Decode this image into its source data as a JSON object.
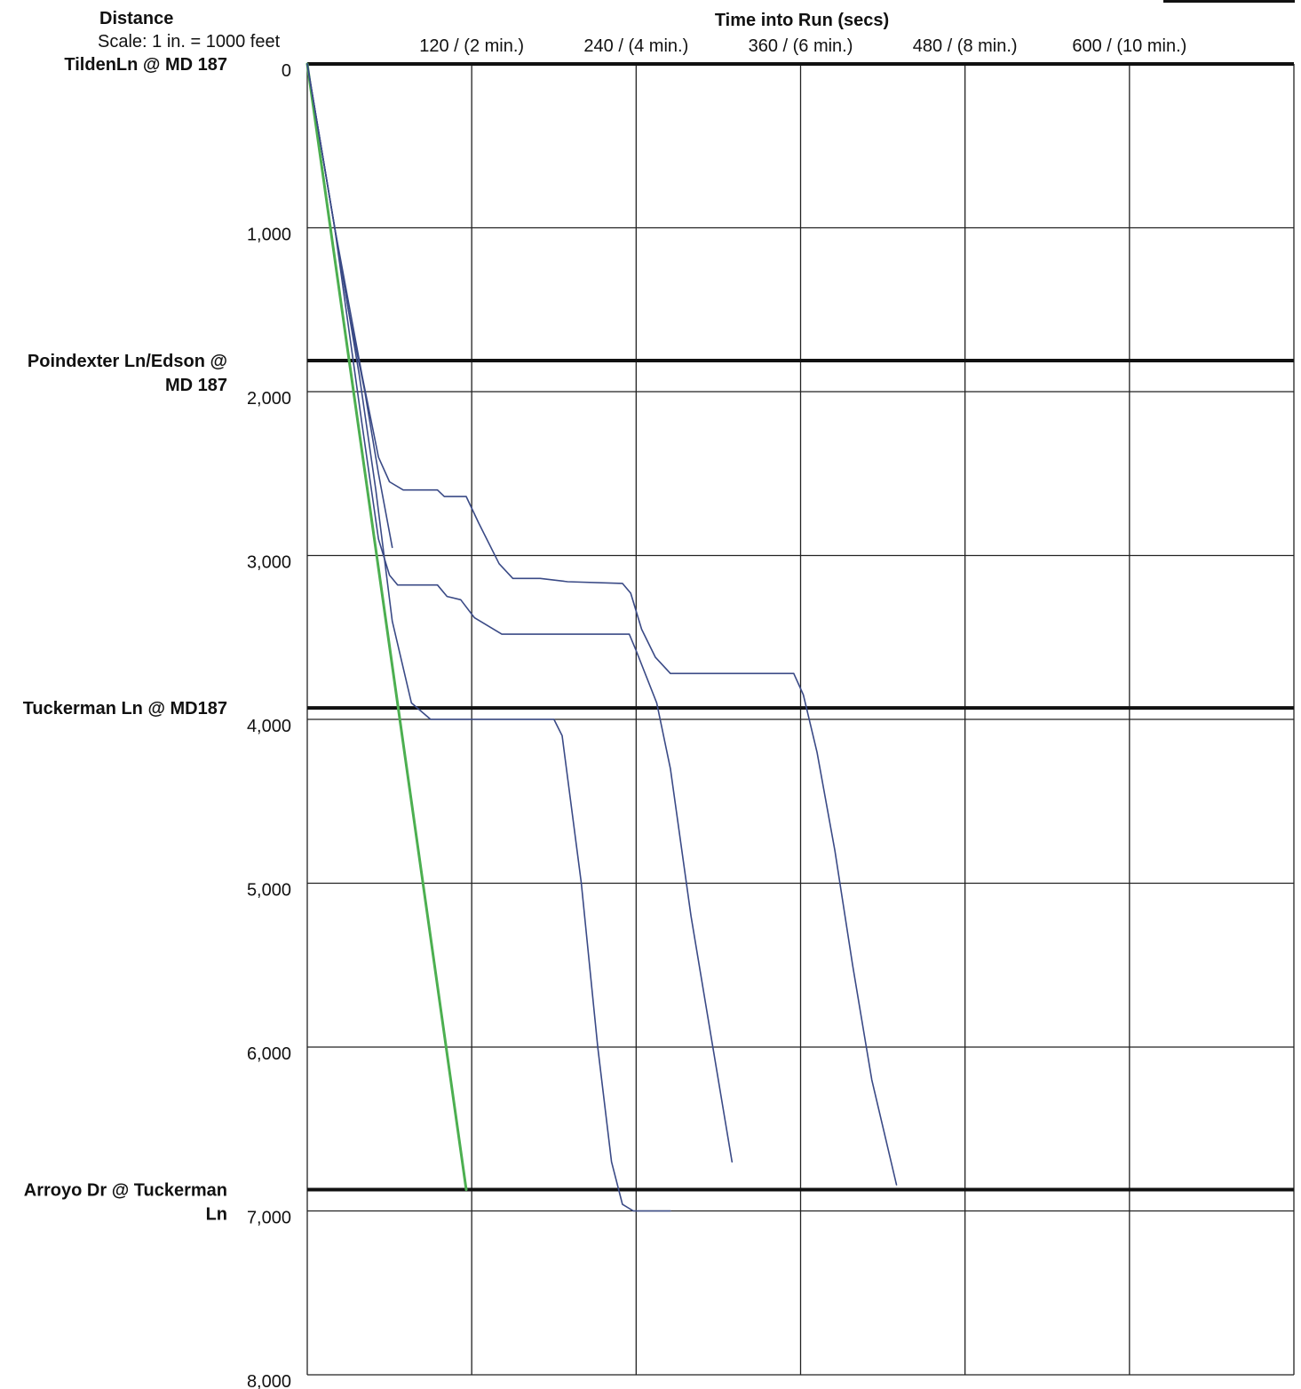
{
  "header": {
    "distance_label": "Distance",
    "scale_label": "Scale: 1 in. = 1000 feet",
    "x_title": "Time into Run (secs)"
  },
  "chart_data": {
    "type": "line",
    "title": "",
    "xlabel": "Time into Run (secs)",
    "ylabel": "Distance",
    "xlim": [
      0,
      720
    ],
    "ylim": [
      0,
      8000
    ],
    "y_inverted": true,
    "grid": true,
    "x_ticks": [
      {
        "value": 120,
        "label": "120 / (2 min.)"
      },
      {
        "value": 240,
        "label": "240 / (4 min.)"
      },
      {
        "value": 360,
        "label": "360 / (6 min.)"
      },
      {
        "value": 480,
        "label": "480 / (8 min.)"
      },
      {
        "value": 600,
        "label": "600 / (10 min.)"
      }
    ],
    "y_ticks": [
      {
        "value": 0,
        "label": "0"
      },
      {
        "value": 1000,
        "label": "1,000"
      },
      {
        "value": 2000,
        "label": "2,000"
      },
      {
        "value": 3000,
        "label": "3,000"
      },
      {
        "value": 4000,
        "label": "4,000"
      },
      {
        "value": 5000,
        "label": "5,000"
      },
      {
        "value": 6000,
        "label": "6,000"
      },
      {
        "value": 7000,
        "label": "7,000"
      },
      {
        "value": 8000,
        "label": "8,000"
      }
    ],
    "stations": [
      {
        "y": 0,
        "label_lines": [
          "TildenLn @ MD 187"
        ]
      },
      {
        "y": 1810,
        "label_lines": [
          "Poindexter Ln/Edson @",
          "MD 187"
        ]
      },
      {
        "y": 3930,
        "label_lines": [
          "Tuckerman Ln @ MD187"
        ]
      },
      {
        "y": 6870,
        "label_lines": [
          "Arroyo Dr @ Tuckerman",
          "Ln"
        ]
      }
    ],
    "series": [
      {
        "color": "#4caf50",
        "width": 3,
        "points": [
          [
            0,
            0
          ],
          [
            116,
            6870
          ]
        ]
      },
      {
        "color": "#3a4a86",
        "width": 1.6,
        "points": [
          [
            0,
            0
          ],
          [
            20,
            1000
          ],
          [
            38,
            1900
          ],
          [
            50,
            2600
          ],
          [
            62,
            3400
          ],
          [
            76,
            3900
          ],
          [
            90,
            4000
          ],
          [
            180,
            4000
          ],
          [
            186,
            4100
          ],
          [
            200,
            5000
          ],
          [
            212,
            6000
          ],
          [
            222,
            6700
          ],
          [
            230,
            6960
          ],
          [
            238,
            7000
          ],
          [
            265,
            7000
          ]
        ]
      },
      {
        "color": "#3a4a86",
        "width": 1.6,
        "points": [
          [
            0,
            0
          ],
          [
            20,
            1000
          ],
          [
            40,
            2200
          ],
          [
            52,
            2900
          ],
          [
            60,
            3120
          ],
          [
            66,
            3180
          ],
          [
            95,
            3180
          ],
          [
            102,
            3250
          ],
          [
            112,
            3270
          ],
          [
            122,
            3380
          ],
          [
            142,
            3480
          ],
          [
            235,
            3480
          ],
          [
            240,
            3580
          ],
          [
            255,
            3900
          ],
          [
            265,
            4300
          ],
          [
            280,
            5200
          ],
          [
            296,
            6000
          ],
          [
            310,
            6700
          ]
        ]
      },
      {
        "color": "#3a4a86",
        "width": 1.6,
        "points": [
          [
            0,
            0
          ],
          [
            20,
            1000
          ],
          [
            40,
            1900
          ],
          [
            52,
            2400
          ],
          [
            60,
            2550
          ],
          [
            70,
            2600
          ],
          [
            95,
            2600
          ],
          [
            100,
            2640
          ],
          [
            116,
            2640
          ],
          [
            125,
            2800
          ],
          [
            140,
            3050
          ],
          [
            150,
            3140
          ],
          [
            170,
            3140
          ],
          [
            190,
            3160
          ],
          [
            230,
            3170
          ],
          [
            236,
            3230
          ],
          [
            244,
            3450
          ],
          [
            254,
            3620
          ],
          [
            265,
            3720
          ],
          [
            355,
            3720
          ],
          [
            362,
            3850
          ],
          [
            372,
            4200
          ],
          [
            385,
            4800
          ],
          [
            398,
            5500
          ],
          [
            412,
            6200
          ],
          [
            430,
            6840
          ]
        ]
      },
      {
        "color": "#3a4a86",
        "width": 1.6,
        "points": [
          [
            0,
            0
          ],
          [
            18,
            900
          ],
          [
            30,
            1500
          ],
          [
            42,
            2000
          ],
          [
            52,
            2500
          ],
          [
            62,
            2950
          ]
        ]
      }
    ]
  }
}
